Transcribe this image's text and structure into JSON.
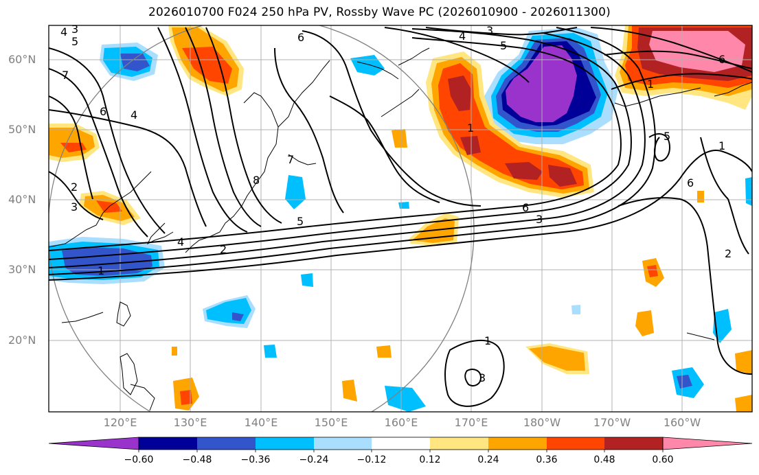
{
  "title": "2026010700 F024 250 hPa PV, Rossby Wave PC (2026010900 - 2026011300)",
  "lat_labels": [
    "60°N",
    "50°N",
    "40°N",
    "30°N",
    "20°N"
  ],
  "lon_labels": [
    "120°E",
    "130°E",
    "140°E",
    "150°E",
    "160°E",
    "170°E",
    "180°W",
    "170°W",
    "160°W"
  ],
  "colorbar": {
    "ticks": [
      "−0.60",
      "−0.48",
      "−0.36",
      "−0.24",
      "−0.12",
      "0.12",
      "0.24",
      "0.36",
      "0.48",
      "0.60"
    ],
    "colors": [
      "#9933cc",
      "#000099",
      "#3355cc",
      "#00bfff",
      "#aadeff",
      "#ffffff",
      "#ffe680",
      "#ffa500",
      "#ff4500",
      "#b22222",
      "#ff88aa"
    ]
  },
  "contour_labels": [
    "4",
    "3",
    "5",
    "6",
    "4",
    "3",
    "5",
    "6",
    "7",
    "6",
    "4",
    "2",
    "3",
    "4",
    "2",
    "1",
    "5",
    "6",
    "3",
    "1",
    "7",
    "8",
    "1",
    "5",
    "1",
    "2",
    "6",
    "1",
    "3"
  ],
  "colors": {
    "contour": "#000000",
    "grid": "#b0b0b0",
    "circle": "#808080"
  }
}
